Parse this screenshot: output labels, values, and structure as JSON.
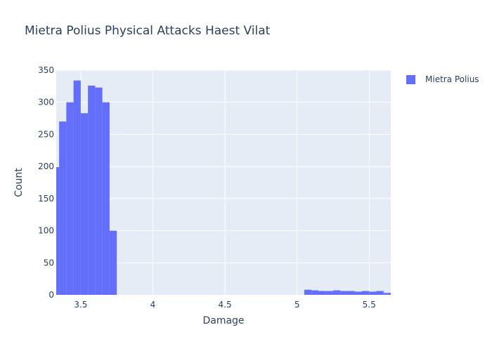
{
  "chart_data": {
    "type": "bar",
    "title": "Mietra Polius Physical Attacks Haest Vilat",
    "xlabel": "Damage",
    "ylabel": "Count",
    "xlim": [
      3.33,
      5.65
    ],
    "ylim": [
      0,
      350
    ],
    "xticks": [
      "3.5",
      "4",
      "4.5",
      "5",
      "5.5"
    ],
    "xtick_values": [
      3.5,
      4,
      4.5,
      5,
      5.5
    ],
    "yticks": [
      "0",
      "50",
      "100",
      "150",
      "200",
      "250",
      "300",
      "350"
    ],
    "ytick_values": [
      0,
      50,
      100,
      150,
      200,
      250,
      300,
      350
    ],
    "grid": true,
    "legend_position": "top-right",
    "bin_width": 0.05,
    "series": [
      {
        "name": "Mietra Polius",
        "color": "#636efa",
        "bins": [
          {
            "x0": 3.3,
            "count": 199
          },
          {
            "x0": 3.35,
            "count": 270
          },
          {
            "x0": 3.4,
            "count": 300
          },
          {
            "x0": 3.45,
            "count": 334
          },
          {
            "x0": 3.5,
            "count": 283
          },
          {
            "x0": 3.55,
            "count": 326
          },
          {
            "x0": 3.6,
            "count": 323
          },
          {
            "x0": 3.65,
            "count": 300
          },
          {
            "x0": 3.7,
            "count": 100
          },
          {
            "x0": 5.05,
            "count": 8
          },
          {
            "x0": 5.1,
            "count": 7
          },
          {
            "x0": 5.15,
            "count": 6
          },
          {
            "x0": 5.2,
            "count": 6
          },
          {
            "x0": 5.25,
            "count": 7
          },
          {
            "x0": 5.3,
            "count": 6
          },
          {
            "x0": 5.35,
            "count": 6
          },
          {
            "x0": 5.4,
            "count": 5
          },
          {
            "x0": 5.45,
            "count": 6
          },
          {
            "x0": 5.5,
            "count": 5
          },
          {
            "x0": 5.55,
            "count": 6
          },
          {
            "x0": 5.6,
            "count": 3
          }
        ]
      }
    ]
  }
}
